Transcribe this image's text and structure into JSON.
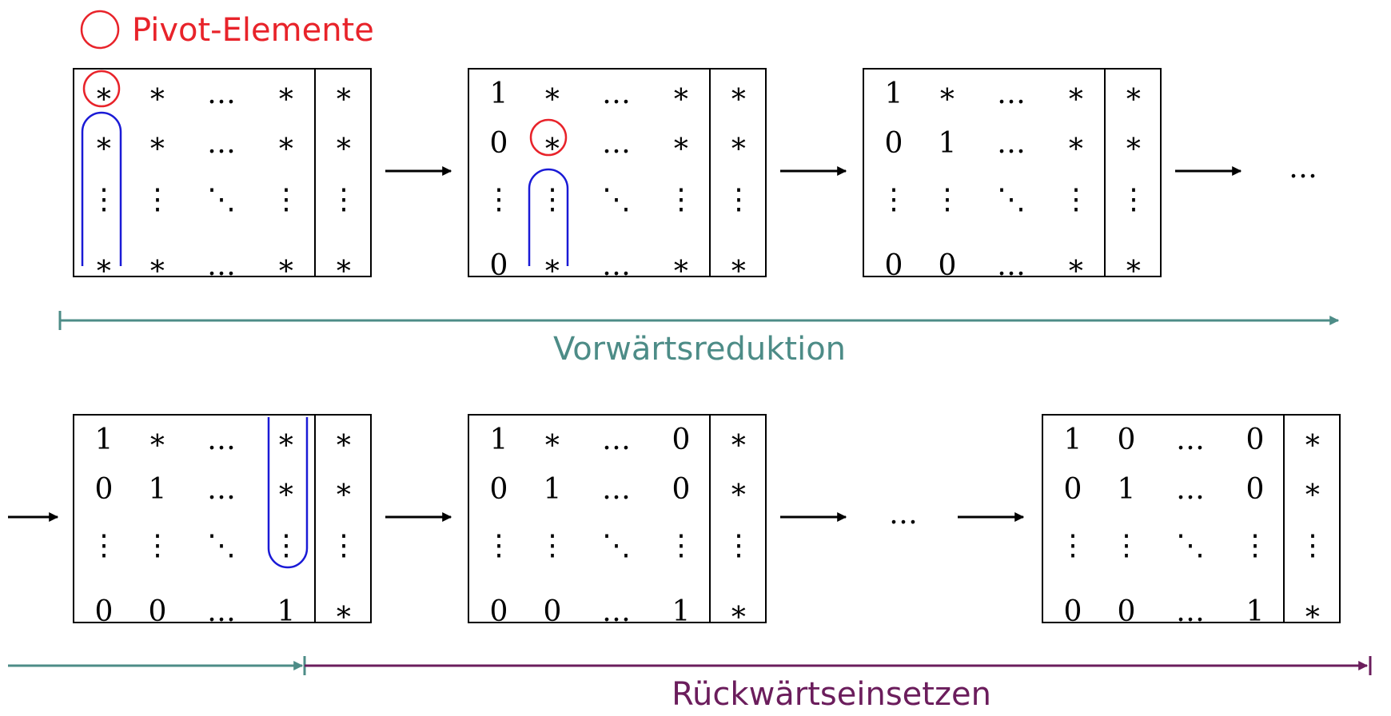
{
  "legend": {
    "label": "Pivot-Elemente",
    "color": "#e8232a"
  },
  "colors": {
    "pivot": "#e8232a",
    "elimination": "#1a1ad6",
    "forward": "#4d8c87",
    "backward": "#6b1d5c"
  },
  "phases": {
    "forward_label": "Vorwärtsreduktion",
    "backward_label": "Rückwärtseinsetzen"
  },
  "ellipsis": "…",
  "matrices": [
    {
      "rows": [
        [
          "∗",
          "∗",
          "…",
          "∗",
          "∗"
        ],
        [
          "∗",
          "∗",
          "…",
          "∗",
          "∗"
        ],
        [
          "⋮",
          "⋮",
          "⋱",
          "⋮",
          "⋮"
        ],
        [
          "∗",
          "∗",
          "…",
          "∗",
          "∗"
        ]
      ]
    },
    {
      "rows": [
        [
          "1",
          "∗",
          "…",
          "∗",
          "∗"
        ],
        [
          "0",
          "∗",
          "…",
          "∗",
          "∗"
        ],
        [
          "⋮",
          "⋮",
          "⋱",
          "⋮",
          "⋮"
        ],
        [
          "0",
          "∗",
          "…",
          "∗",
          "∗"
        ]
      ]
    },
    {
      "rows": [
        [
          "1",
          "∗",
          "…",
          "∗",
          "∗"
        ],
        [
          "0",
          "1",
          "…",
          "∗",
          "∗"
        ],
        [
          "⋮",
          "⋮",
          "⋱",
          "⋮",
          "⋮"
        ],
        [
          "0",
          "0",
          "…",
          "∗",
          "∗"
        ]
      ]
    },
    {
      "rows": [
        [
          "1",
          "∗",
          "…",
          "∗",
          "∗"
        ],
        [
          "0",
          "1",
          "…",
          "∗",
          "∗"
        ],
        [
          "⋮",
          "⋮",
          "⋱",
          "⋮",
          "⋮"
        ],
        [
          "0",
          "0",
          "…",
          "1",
          "∗"
        ]
      ]
    },
    {
      "rows": [
        [
          "1",
          "∗",
          "…",
          "0",
          "∗"
        ],
        [
          "0",
          "1",
          "…",
          "0",
          "∗"
        ],
        [
          "⋮",
          "⋮",
          "⋱",
          "⋮",
          "⋮"
        ],
        [
          "0",
          "0",
          "…",
          "1",
          "∗"
        ]
      ]
    },
    {
      "rows": [
        [
          "1",
          "0",
          "…",
          "0",
          "∗"
        ],
        [
          "0",
          "1",
          "…",
          "0",
          "∗"
        ],
        [
          "⋮",
          "⋮",
          "⋱",
          "⋮",
          "⋮"
        ],
        [
          "0",
          "0",
          "…",
          "1",
          "∗"
        ]
      ]
    }
  ]
}
